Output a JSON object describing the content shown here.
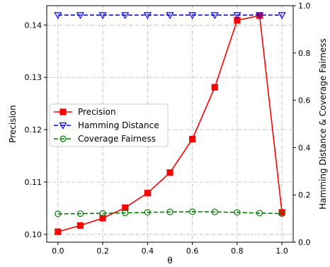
{
  "chart_data": {
    "type": "line",
    "title": "",
    "xlabel": "θ",
    "ylabel_left": "Precision",
    "ylabel_right": "Hamming Distance & Coverage Fairness",
    "x": [
      0.0,
      0.1,
      0.2,
      0.3,
      0.4,
      0.5,
      0.6,
      0.7,
      0.8,
      0.9,
      1.0
    ],
    "xlim": [
      -0.05,
      1.05
    ],
    "xticks": [
      "0.0",
      "0.2",
      "0.4",
      "0.6",
      "0.8",
      "1.0"
    ],
    "ylim_left": [
      0.0985,
      0.1437
    ],
    "yticks_left": [
      "0.10",
      "0.11",
      "0.12",
      "0.13",
      "0.14"
    ],
    "ylim_right": [
      0.0,
      1.0
    ],
    "yticks_right": [
      "0.0",
      "0.2",
      "0.4",
      "0.6",
      "0.8",
      "1.0"
    ],
    "grid": true,
    "legend_position": "center-left",
    "series": [
      {
        "name": "Precision",
        "axis": "left",
        "color": "#ff0000",
        "marker": "square",
        "linestyle": "solid",
        "values": [
          0.1005,
          0.1017,
          0.1031,
          0.1051,
          0.1079,
          0.1118,
          0.1182,
          0.1281,
          0.1409,
          0.1418,
          0.1042
        ]
      },
      {
        "name": "Hamming Distance",
        "axis": "right",
        "color": "#0000ff",
        "marker": "triangle-down",
        "linestyle": "dashed",
        "values": [
          0.96,
          0.96,
          0.96,
          0.96,
          0.96,
          0.96,
          0.96,
          0.96,
          0.96,
          0.96,
          0.96
        ]
      },
      {
        "name": "Coverage Fairness",
        "axis": "right",
        "color": "#008000",
        "marker": "circle",
        "linestyle": "dashed",
        "values": [
          0.12,
          0.121,
          0.122,
          0.124,
          0.126,
          0.128,
          0.129,
          0.128,
          0.126,
          0.123,
          0.121
        ]
      }
    ]
  }
}
